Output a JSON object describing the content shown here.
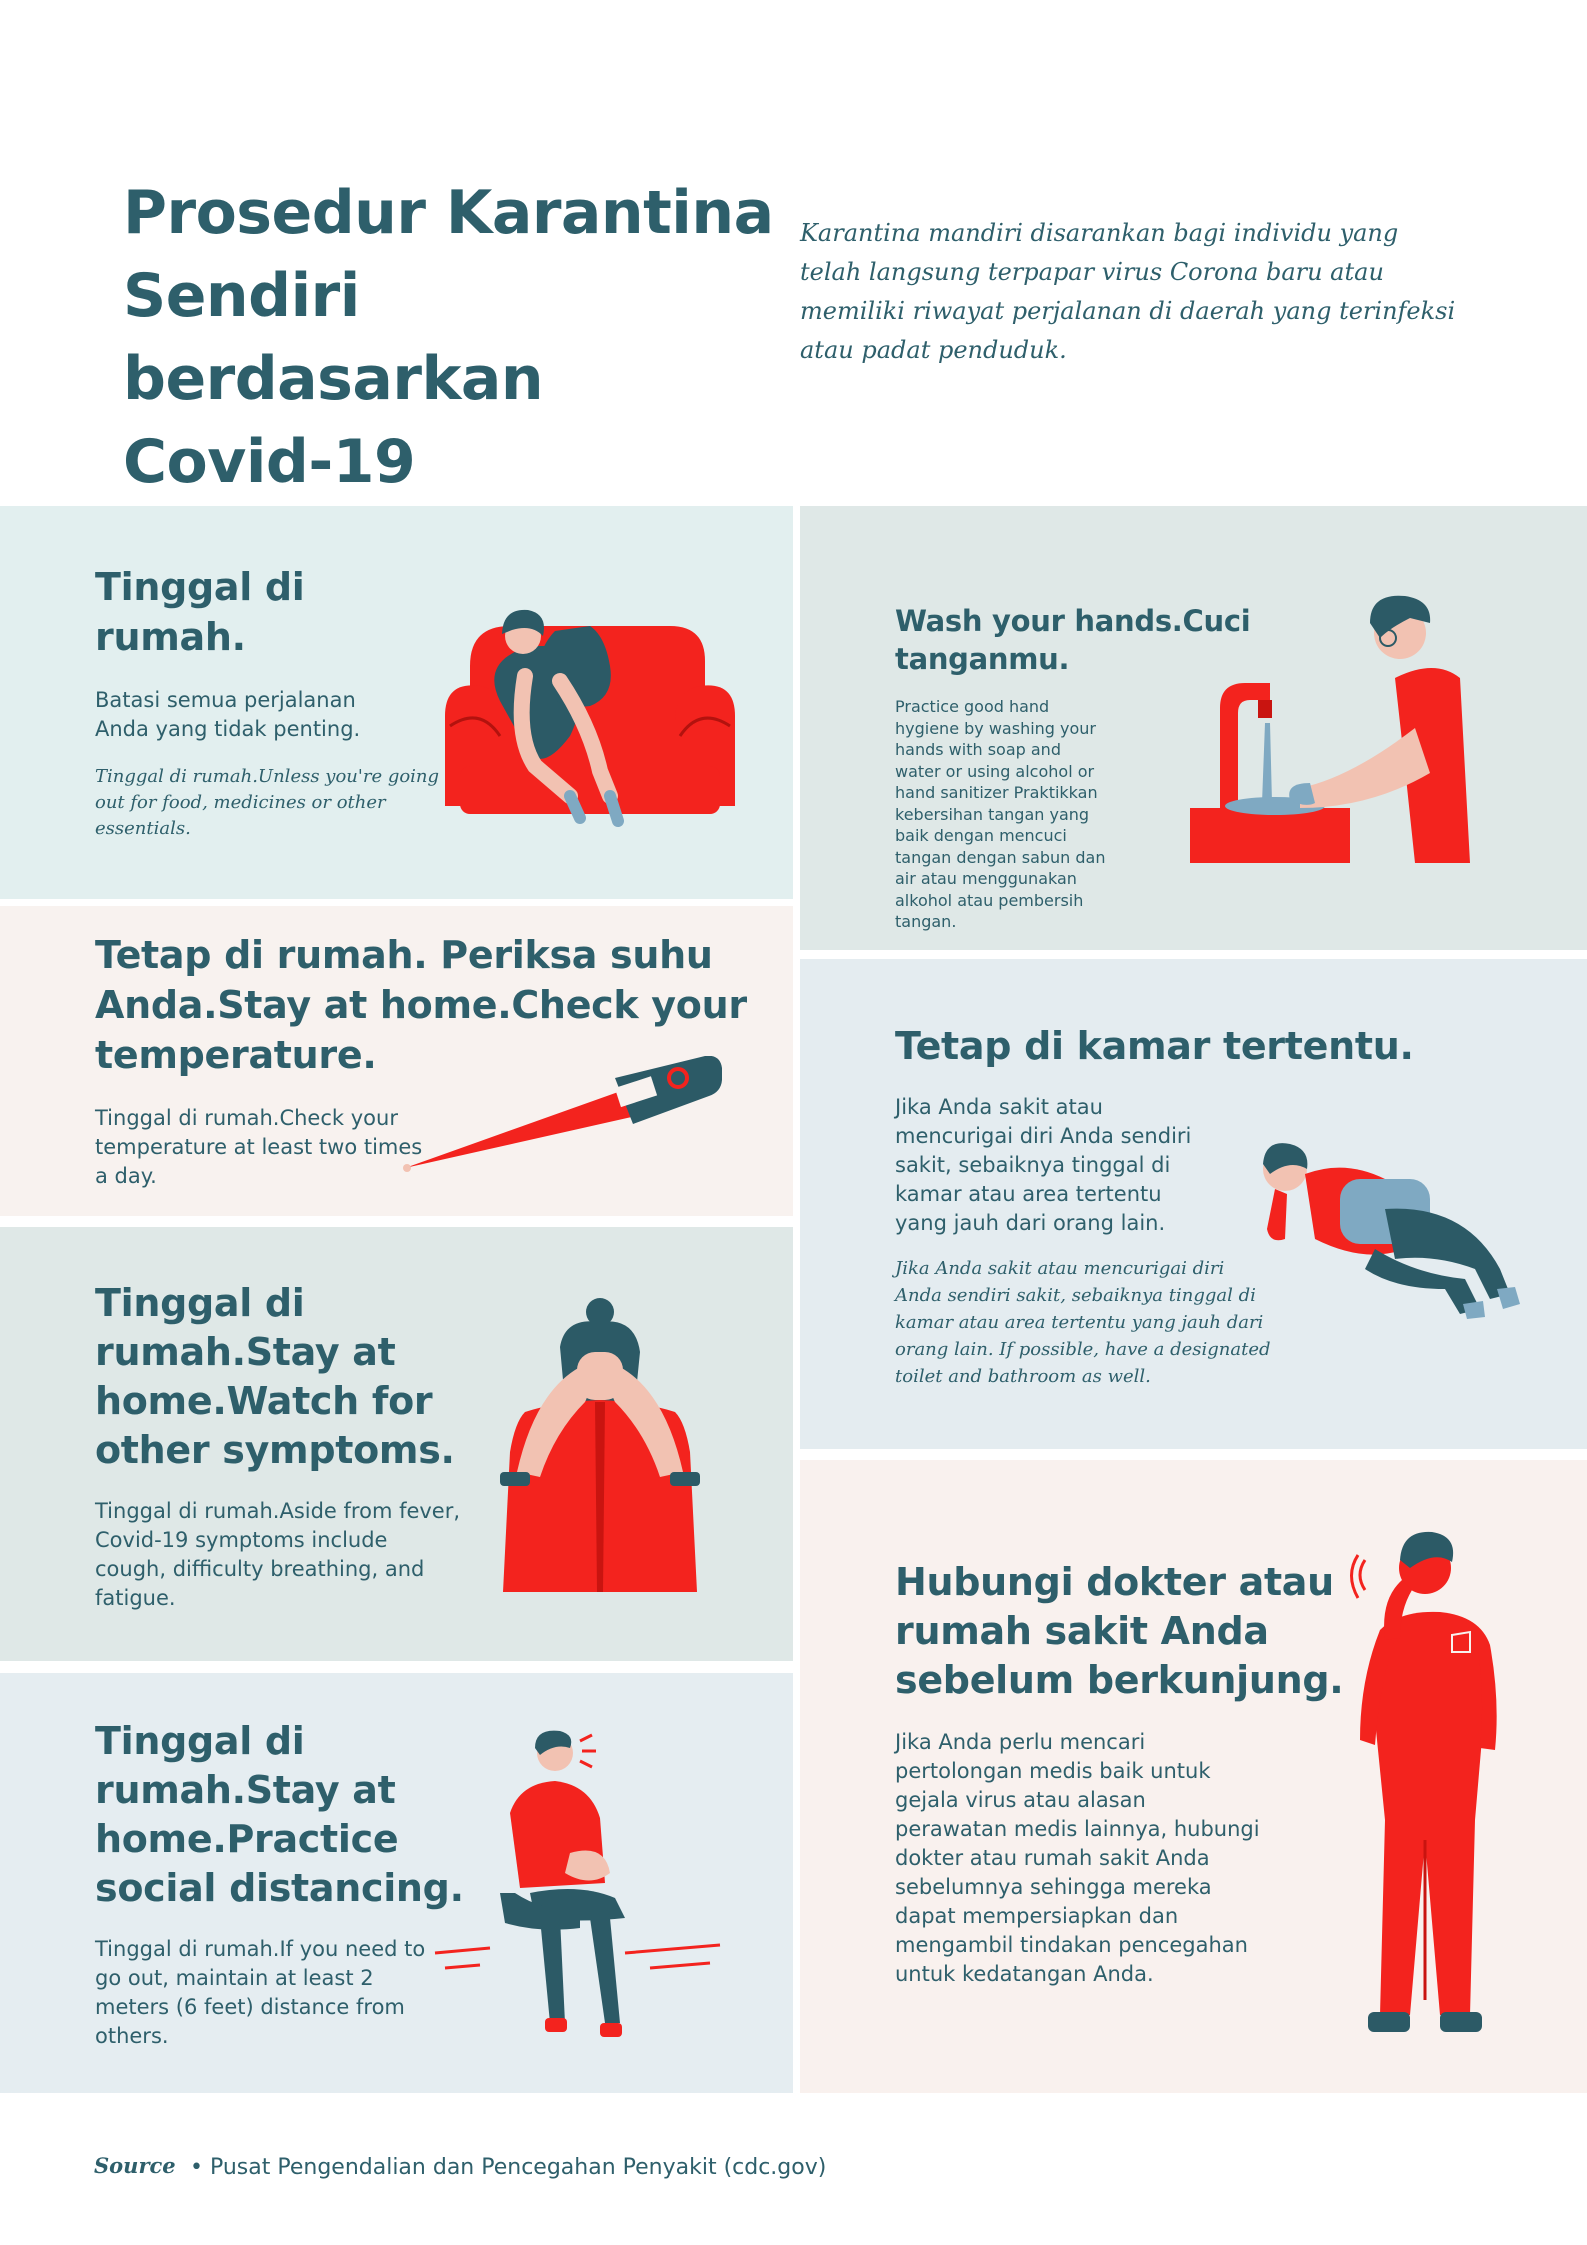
{
  "header": {
    "title_line1": "Prosedur Karantina",
    "title_line2": "Sendiri berdasarkan",
    "title_line3": "Covid-19",
    "intro_line1": "Karantina mandiri disarankan bagi individu yang",
    "intro_line2": "telah langsung terpapar virus Corona baru atau",
    "intro_line3": "memiliki riwayat perjalanan di daerah yang terinfeksi",
    "intro_line4": "atau padat penduduk."
  },
  "cards": {
    "stay_home": {
      "heading_l1": "Tinggal di",
      "heading_l2": "rumah.",
      "text_l1": "Batasi semua perjalanan",
      "text_l2": "Anda yang tidak penting.",
      "italic_l1": "Tinggal di rumah.Unless you're going",
      "italic_l2": "out for food, medicines or other",
      "italic_l3": "essentials."
    },
    "check_temp": {
      "heading_l1": "Tetap di rumah. Periksa suhu",
      "heading_l2": "Anda.Stay at home.Check your",
      "heading_l3": "temperature.",
      "text_l1": "Tinggal di rumah.Check your",
      "text_l2": "temperature at least two times",
      "text_l3": "a day."
    },
    "symptoms": {
      "heading_l1": "Tinggal di",
      "heading_l2": "rumah.Stay at",
      "heading_l3": "home.Watch for",
      "heading_l4": "other symptoms.",
      "text_l1": "Tinggal di rumah.Aside from fever,",
      "text_l2": "Covid-19 symptoms include",
      "text_l3": "cough, difficulty breathing, and",
      "text_l4": "fatigue."
    },
    "distancing": {
      "heading_l1": "Tinggal di",
      "heading_l2": "rumah.Stay at",
      "heading_l3": "home.Practice",
      "heading_l4": "social distancing.",
      "text_l1": "Tinggal di rumah.If you need to",
      "text_l2": "go out, maintain at least 2",
      "text_l3": "meters (6 feet) distance from",
      "text_l4": "others."
    },
    "wash_hands": {
      "heading_l1": "Wash your hands.Cuci",
      "heading_l2": "tanganmu.",
      "text": [
        "Practice good hand",
        "hygiene by washing your",
        "hands with soap and",
        "water or using alcohol or",
        "hand sanitizer Praktikkan",
        "kebersihan tangan yang",
        "baik dengan mencuci",
        "tangan dengan sabun dan",
        "air atau menggunakan",
        "alkohol atau pembersih",
        "tangan."
      ]
    },
    "room": {
      "heading": "Tetap di kamar tertentu.",
      "text_l1": "Jika Anda sakit atau",
      "text_l2": "mencurigai diri Anda sendiri",
      "text_l3": "sakit, sebaiknya tinggal di",
      "text_l4": "kamar atau area tertentu",
      "text_l5": "yang jauh dari orang lain.",
      "italic_l1": "Jika Anda sakit atau mencurigai diri",
      "italic_l2": "Anda sendiri sakit, sebaiknya tinggal di",
      "italic_l3": "kamar atau area tertentu yang jauh dari",
      "italic_l4": "orang lain. If possible, have a designated",
      "italic_l5": "toilet and bathroom as well."
    },
    "doctor": {
      "heading_l1": "Hubungi dokter atau",
      "heading_l2": "rumah sakit Anda",
      "heading_l3": "sebelum berkunjung.",
      "text": [
        "Jika Anda perlu mencari",
        "pertolongan medis baik untuk",
        "gejala virus atau alasan",
        "perawatan medis lainnya, hubungi",
        "dokter atau rumah sakit Anda",
        "sebelumnya sehingga mereka",
        "dapat mempersiapkan dan",
        "mengambil tindakan pencegahan",
        "untuk kedatangan Anda."
      ]
    }
  },
  "footer": {
    "source_label": "Source",
    "source_text": "• Pusat Pengendalian dan Pencegahan Penyakit (cdc.gov)"
  },
  "colors": {
    "heading": "#2e5f6b",
    "red": "#f3231e",
    "dark_teal": "#2c5a66",
    "skin": "#f2c2b2",
    "light_blue": "#7fa9c2"
  }
}
